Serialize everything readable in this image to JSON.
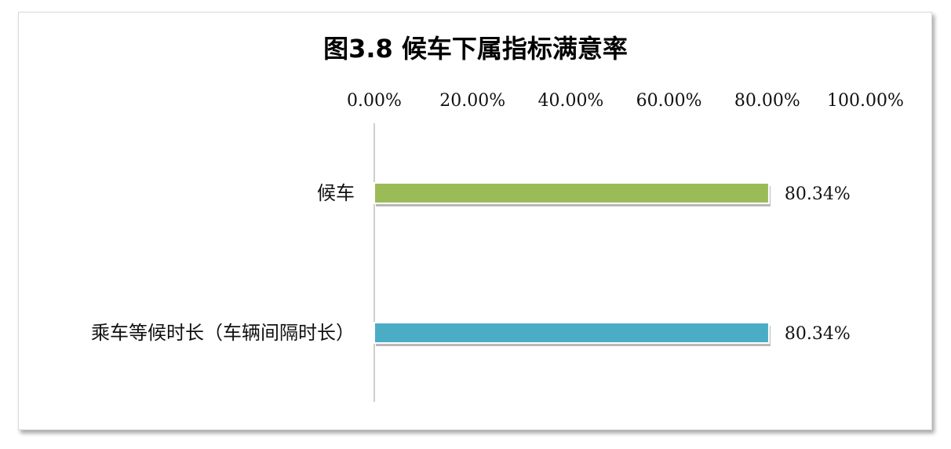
{
  "chart_data": {
    "type": "bar",
    "orientation": "horizontal",
    "title": "图3.8 候车下属指标满意率",
    "categories": [
      "候车",
      "乘车等候时长（车辆间隔时长）"
    ],
    "values": [
      80.34,
      80.34
    ],
    "value_labels": [
      "80.34%",
      "80.34%"
    ],
    "bar_colors": [
      "#9bbb59",
      "#4bacc6"
    ],
    "x_ticks": [
      "0.00%",
      "20.00%",
      "40.00%",
      "60.00%",
      "80.00%",
      "100.00%"
    ],
    "xlim": [
      0,
      100
    ],
    "x_axis_position": "top",
    "grid": false,
    "legend": "none"
  }
}
